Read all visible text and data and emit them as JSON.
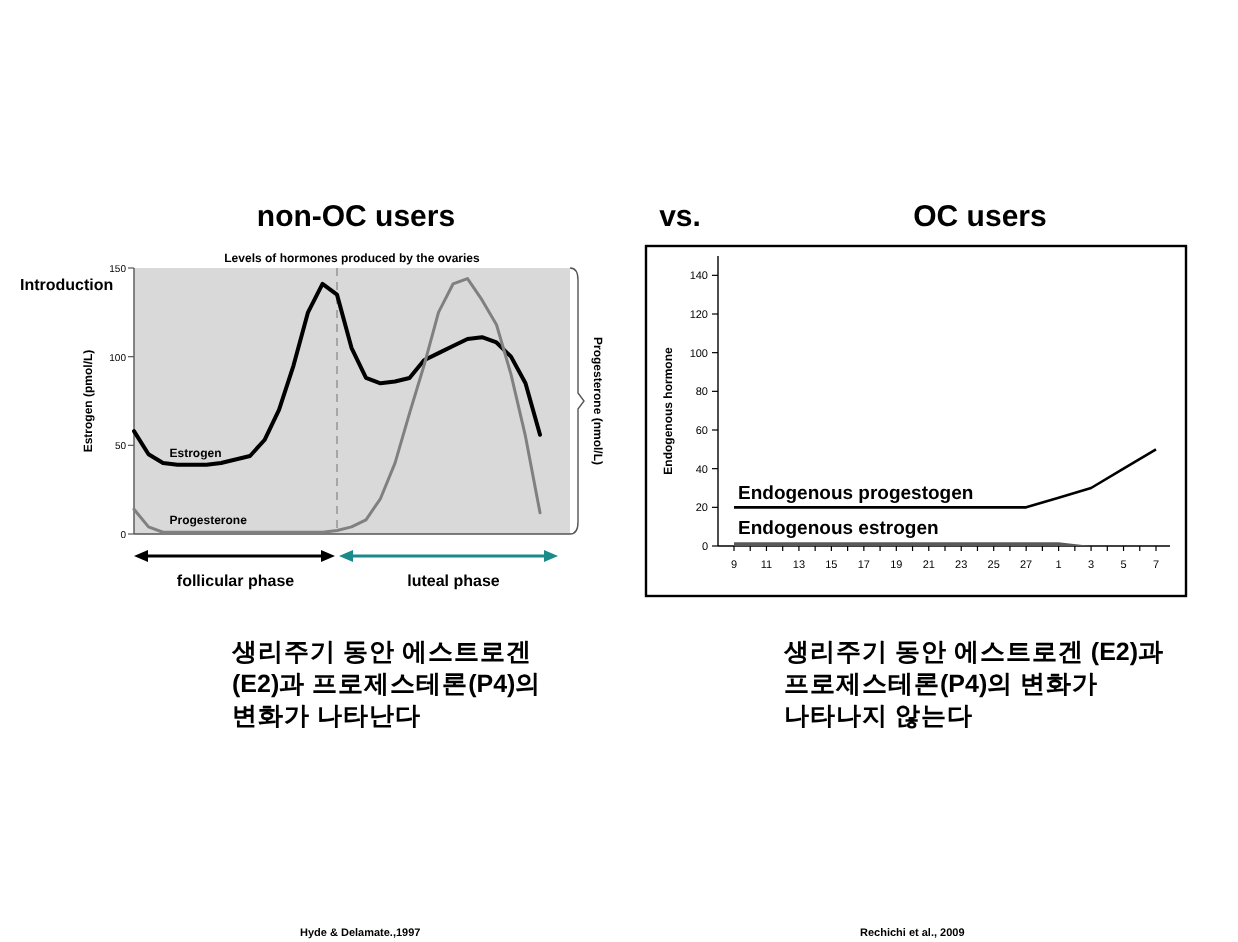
{
  "chart_data": [
    {
      "type": "line",
      "title": "non-OC users",
      "subtitle": "Levels of hormones produced by the ovaries",
      "ylabel": "Estrogen (pmol/L)",
      "y2label": "Progesterone (nmol/L)",
      "categories": [
        null,
        null,
        null,
        null,
        null,
        null,
        null,
        null,
        null,
        null,
        null,
        null,
        null,
        null,
        null,
        null,
        null,
        null,
        null,
        null,
        null,
        null,
        null,
        null,
        null,
        null,
        null,
        null,
        null
      ],
      "ylim": [
        0,
        150
      ],
      "yticks": [
        0,
        50,
        100,
        150
      ],
      "series": [
        {
          "name": "Estrogen",
          "color": "#000000",
          "values": [
            58,
            45,
            40,
            39,
            39,
            39,
            40,
            42,
            44,
            53,
            70,
            95,
            125,
            141,
            135,
            105,
            88,
            85,
            86,
            88,
            98,
            102,
            106,
            110,
            111,
            108,
            100,
            85,
            56
          ]
        },
        {
          "name": "Progesterone",
          "color": "#808080",
          "values": [
            14,
            4,
            1,
            1,
            1,
            1,
            1,
            1,
            1,
            1,
            1,
            1,
            1,
            1,
            2,
            4,
            8,
            20,
            40,
            68,
            95,
            125,
            141,
            144,
            132,
            118,
            90,
            55,
            12
          ]
        }
      ],
      "annotations": [
        "Introduction",
        "vs.",
        "follicular phase",
        "luteal phase",
        "생리주기 동안 에스트로겐 (E2)과 프로제스테론(P4)의 변화가 나타난다",
        "Hyde & Delamate.,1997"
      ]
    },
    {
      "type": "line",
      "title": "OC users",
      "ylabel": "Endogenous hormone",
      "categories": [
        "9",
        "11",
        "13",
        "15",
        "17",
        "19",
        "21",
        "23",
        "25",
        "27",
        "1",
        "3",
        "5",
        "7"
      ],
      "ylim": [
        0,
        150
      ],
      "yticks": [
        0,
        20,
        40,
        60,
        80,
        100,
        120,
        140
      ],
      "series": [
        {
          "name": "Endogenous progestogen",
          "color": "#000000",
          "values": [
            20,
            20,
            20,
            20,
            20,
            20,
            20,
            20,
            20,
            20,
            25,
            30,
            40,
            50
          ]
        },
        {
          "name": "Endogenous estrogen",
          "type": "area",
          "color": "#595959",
          "values": [
            2,
            2,
            2,
            2,
            2,
            2,
            2,
            2,
            2,
            2,
            2,
            0,
            null,
            null
          ]
        }
      ],
      "annotations": [
        "생리주기 동안 에스트로겐 (E2)과 프로제스테론(P4)의 변화가 나타나지 않는다",
        "Rechichi et al., 2009"
      ]
    }
  ]
}
